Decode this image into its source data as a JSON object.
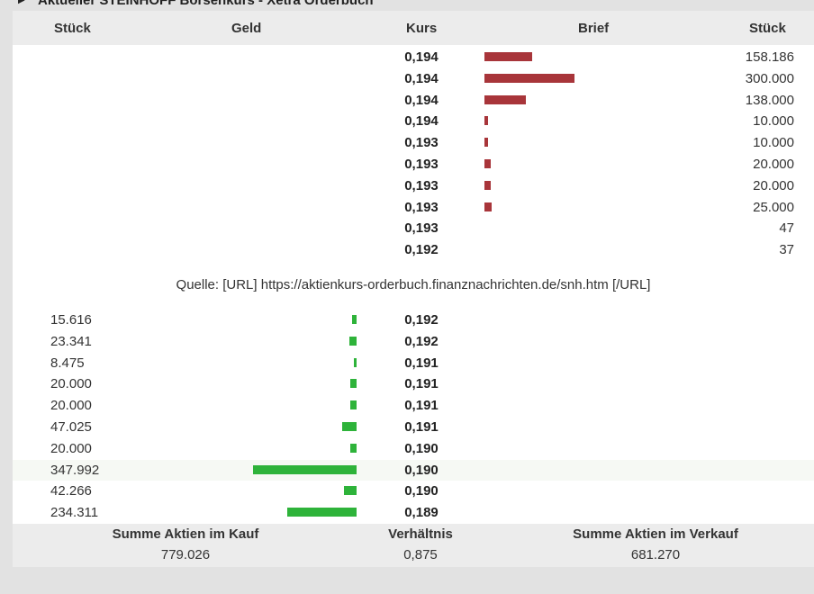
{
  "title": "Aktueller STEINHOFF Börsenkurs - Xetra Orderbuch",
  "header": {
    "stueck_left": "Stück",
    "geld": "Geld",
    "kurs": "Kurs",
    "brief": "Brief",
    "stueck_right": "Stück"
  },
  "ask_rows": [
    {
      "kurs": "0,194",
      "stueck": "158.186",
      "volume": 158186
    },
    {
      "kurs": "0,194",
      "stueck": "300.000",
      "volume": 300000
    },
    {
      "kurs": "0,194",
      "stueck": "138.000",
      "volume": 138000
    },
    {
      "kurs": "0,194",
      "stueck": "10.000",
      "volume": 10000
    },
    {
      "kurs": "0,193",
      "stueck": "10.000",
      "volume": 10000
    },
    {
      "kurs": "0,193",
      "stueck": "20.000",
      "volume": 20000
    },
    {
      "kurs": "0,193",
      "stueck": "20.000",
      "volume": 20000
    },
    {
      "kurs": "0,193",
      "stueck": "25.000",
      "volume": 25000
    },
    {
      "kurs": "0,193",
      "stueck": "47",
      "volume": 47
    },
    {
      "kurs": "0,192",
      "stueck": "37",
      "volume": 37
    }
  ],
  "source_text": "Quelle: [URL] https://aktienkurs-orderbuch.finanznachrichten.de/snh.htm [/URL]",
  "bid_rows": [
    {
      "stueck": "15.616",
      "kurs": "0,192",
      "volume": 15616
    },
    {
      "stueck": "23.341",
      "kurs": "0,192",
      "volume": 23341
    },
    {
      "stueck": "8.475",
      "kurs": "0,191",
      "volume": 8475
    },
    {
      "stueck": "20.000",
      "kurs": "0,191",
      "volume": 20000
    },
    {
      "stueck": "20.000",
      "kurs": "0,191",
      "volume": 20000
    },
    {
      "stueck": "47.025",
      "kurs": "0,191",
      "volume": 47025
    },
    {
      "stueck": "20.000",
      "kurs": "0,190",
      "volume": 20000
    },
    {
      "stueck": "347.992",
      "kurs": "0,190",
      "volume": 347992
    },
    {
      "stueck": "42.266",
      "kurs": "0,190",
      "volume": 42266
    },
    {
      "stueck": "234.311",
      "kurs": "0,189",
      "volume": 234311
    }
  ],
  "footer": {
    "kauf_label": "Summe Aktien im Kauf",
    "kauf_value": "779.026",
    "verhaeltnis_label": "Verhältnis",
    "verhaeltnis_value": "0,875",
    "verkauf_label": "Summe Aktien im Verkauf",
    "verkauf_value": "681.270"
  },
  "colors": {
    "ask_bar": "#a8353a",
    "bid_bar": "#2eb33a",
    "header_bg": "#ececec"
  }
}
